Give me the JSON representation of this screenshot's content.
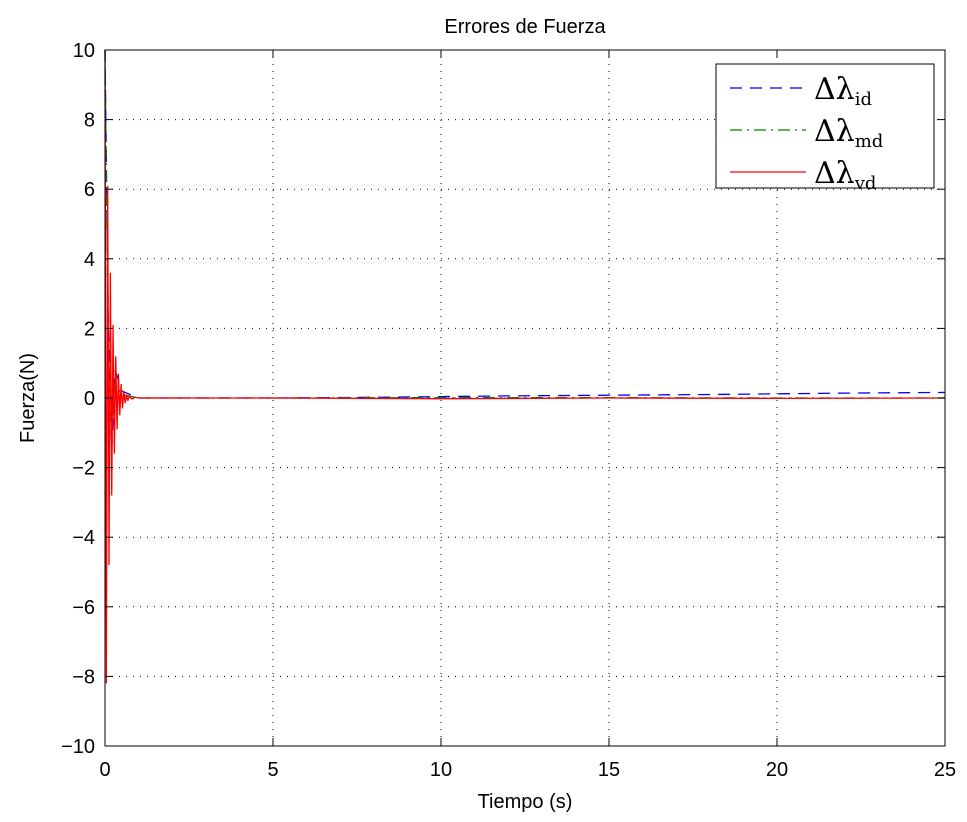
{
  "chart_data": {
    "type": "line",
    "title": "Errores de Fuerza",
    "xlabel": "Tiempo (s)",
    "ylabel": "Fuerza(N)",
    "xlim": [
      0,
      25
    ],
    "ylim": [
      -10,
      10
    ],
    "xticks": [
      "0",
      "5",
      "10",
      "15",
      "20",
      "25"
    ],
    "yticks": [
      "10",
      "8",
      "6",
      "4",
      "2",
      "0",
      "−2",
      "−4",
      "−6",
      "−8",
      "−10"
    ],
    "grid": true,
    "legend_position": "top-right",
    "series": [
      {
        "name": "Δλ_id",
        "name_symbol": "Δλ",
        "name_subscript": "id",
        "color": "#0000ff",
        "style": "dashed",
        "x": [
          0,
          0.1,
          0.2,
          0.3,
          0.5,
          1.0,
          2,
          5,
          8,
          10,
          12,
          15,
          18,
          20,
          22,
          25
        ],
        "y": [
          10,
          2.0,
          -1.5,
          0.8,
          0.2,
          0.0,
          0.0,
          0.0,
          0.02,
          0.04,
          0.06,
          0.08,
          0.1,
          0.12,
          0.14,
          0.16
        ]
      },
      {
        "name": "Δλ_md",
        "name_symbol": "Δλ",
        "name_subscript": "md",
        "color": "#008000",
        "style": "dashdot",
        "x": [
          0,
          0.1,
          0.2,
          0.3,
          0.5,
          1.0,
          2,
          5,
          10,
          15,
          20,
          25
        ],
        "y": [
          10,
          1.0,
          -0.8,
          0.4,
          0.1,
          0.0,
          0.0,
          0.0,
          0.01,
          0.01,
          0.0,
          0.0
        ]
      },
      {
        "name": "Δλ_vd",
        "name_symbol": "Δλ",
        "name_subscript": "vd",
        "color": "#ff0000",
        "style": "solid",
        "x": [
          0,
          0.04,
          0.08,
          0.12,
          0.16,
          0.2,
          0.24,
          0.28,
          0.32,
          0.36,
          0.4,
          0.44,
          0.48,
          0.52,
          0.56,
          0.6,
          0.64,
          0.68,
          0.72,
          0.8,
          0.9,
          1.0,
          1.2,
          1.5,
          2,
          5,
          10,
          15,
          20,
          25
        ],
        "y": [
          10,
          -8.2,
          6.1,
          -4.8,
          3.6,
          -2.8,
          2.1,
          -1.6,
          1.2,
          -0.9,
          0.7,
          -0.5,
          0.4,
          -0.3,
          0.2,
          -0.15,
          0.1,
          -0.08,
          0.05,
          -0.03,
          0.02,
          0.0,
          0.0,
          0.0,
          0.0,
          0.0,
          -0.02,
          0.0,
          -0.01,
          0.0
        ]
      }
    ]
  }
}
